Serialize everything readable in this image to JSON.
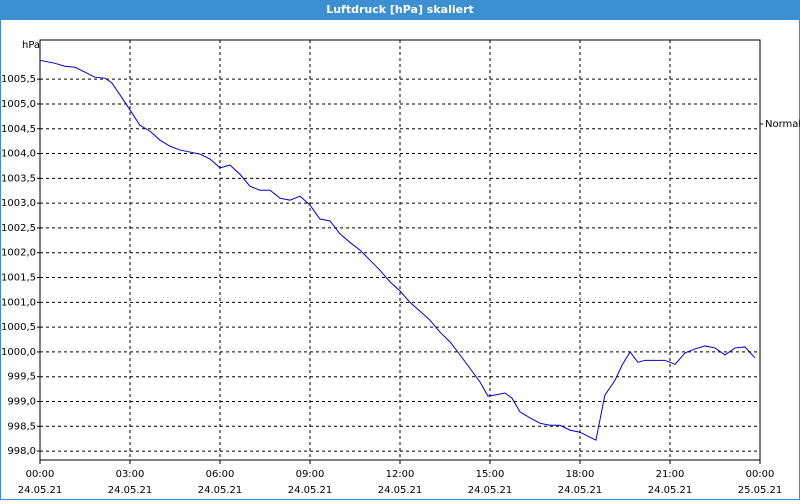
{
  "chart_data": {
    "type": "line",
    "title": "Luftdruck [hPa] skaliert",
    "y_label": "hPa",
    "xlim": [
      0,
      24
    ],
    "ylim": [
      997.82,
      1006.29
    ],
    "grid": true,
    "legend": "right",
    "xticks": [
      {
        "value": 0,
        "label": "00:00",
        "sublabel": "24.05.21"
      },
      {
        "value": 3,
        "label": "03:00",
        "sublabel": "24.05.21"
      },
      {
        "value": 6,
        "label": "06:00",
        "sublabel": "24.05.21"
      },
      {
        "value": 9,
        "label": "09:00",
        "sublabel": "24.05.21"
      },
      {
        "value": 12,
        "label": "12:00",
        "sublabel": "24.05.21"
      },
      {
        "value": 15,
        "label": "15:00",
        "sublabel": "24.05.21"
      },
      {
        "value": 18,
        "label": "18:00",
        "sublabel": "24.05.21"
      },
      {
        "value": 21,
        "label": "21:00",
        "sublabel": "24.05.21"
      },
      {
        "value": 24,
        "label": "00:00",
        "sublabel": "25.05.21"
      }
    ],
    "yticks": [
      {
        "value": 998.0,
        "label": "998,0"
      },
      {
        "value": 998.5,
        "label": "998,5"
      },
      {
        "value": 999.0,
        "label": "999,0"
      },
      {
        "value": 999.5,
        "label": "999,5"
      },
      {
        "value": 1000.0,
        "label": "1000,0"
      },
      {
        "value": 1000.5,
        "label": "1000,5"
      },
      {
        "value": 1001.0,
        "label": "1001,0"
      },
      {
        "value": 1001.5,
        "label": "1001,5"
      },
      {
        "value": 1002.0,
        "label": "1002,0"
      },
      {
        "value": 1002.5,
        "label": "1002,5"
      },
      {
        "value": 1003.0,
        "label": "1003,0"
      },
      {
        "value": 1003.5,
        "label": "1003,5"
      },
      {
        "value": 1004.0,
        "label": "1004,0"
      },
      {
        "value": 1004.5,
        "label": "1004,5"
      },
      {
        "value": 1005.0,
        "label": "1005,0"
      },
      {
        "value": 1005.5,
        "label": "1005,5"
      }
    ],
    "x": [
      0,
      0.17,
      0.5,
      0.83,
      1.17,
      1.5,
      1.83,
      2.17,
      2.4,
      2.67,
      3,
      3.33,
      3.67,
      4,
      4.33,
      4.67,
      5,
      5.33,
      5.67,
      6,
      6.33,
      6.67,
      7,
      7.33,
      7.67,
      8,
      8.33,
      8.67,
      9,
      9.33,
      9.67,
      10,
      10.33,
      10.67,
      11,
      11.33,
      11.67,
      12,
      12.33,
      12.67,
      13,
      13.33,
      13.67,
      14,
      14.33,
      14.67,
      14.93,
      15.17,
      15.5,
      15.73,
      16,
      16.33,
      16.67,
      17,
      17.33,
      17.67,
      18,
      18.33,
      18.53,
      18.83,
      19.17,
      19.4,
      19.67,
      19.93,
      20.17,
      20.5,
      20.83,
      21.17,
      21.5,
      21.83,
      22.17,
      22.5,
      22.83,
      23.17,
      23.5,
      23.83
    ],
    "series": [
      {
        "name": "Normal",
        "color": "#0000cc",
        "values": [
          1005.88,
          1005.86,
          1005.82,
          1005.76,
          1005.74,
          1005.64,
          1005.54,
          1005.52,
          1005.42,
          1005.18,
          1004.88,
          1004.57,
          1004.45,
          1004.27,
          1004.15,
          1004.07,
          1004.03,
          1003.99,
          1003.89,
          1003.71,
          1003.77,
          1003.58,
          1003.34,
          1003.26,
          1003.26,
          1003.1,
          1003.06,
          1003.14,
          1002.96,
          1002.68,
          1002.64,
          1002.38,
          1002.21,
          1002.05,
          1001.85,
          1001.65,
          1001.41,
          1001.23,
          1001.0,
          1000.82,
          1000.64,
          1000.4,
          1000.2,
          999.94,
          999.67,
          999.39,
          999.11,
          999.13,
          999.17,
          999.07,
          998.79,
          998.67,
          998.56,
          998.52,
          998.52,
          998.42,
          998.38,
          998.28,
          998.22,
          999.13,
          999.43,
          999.73,
          1000.0,
          999.79,
          999.83,
          999.83,
          999.83,
          999.75,
          999.98,
          1000.06,
          1000.12,
          1000.08,
          999.94,
          1000.08,
          1000.1,
          999.88
        ]
      }
    ]
  }
}
